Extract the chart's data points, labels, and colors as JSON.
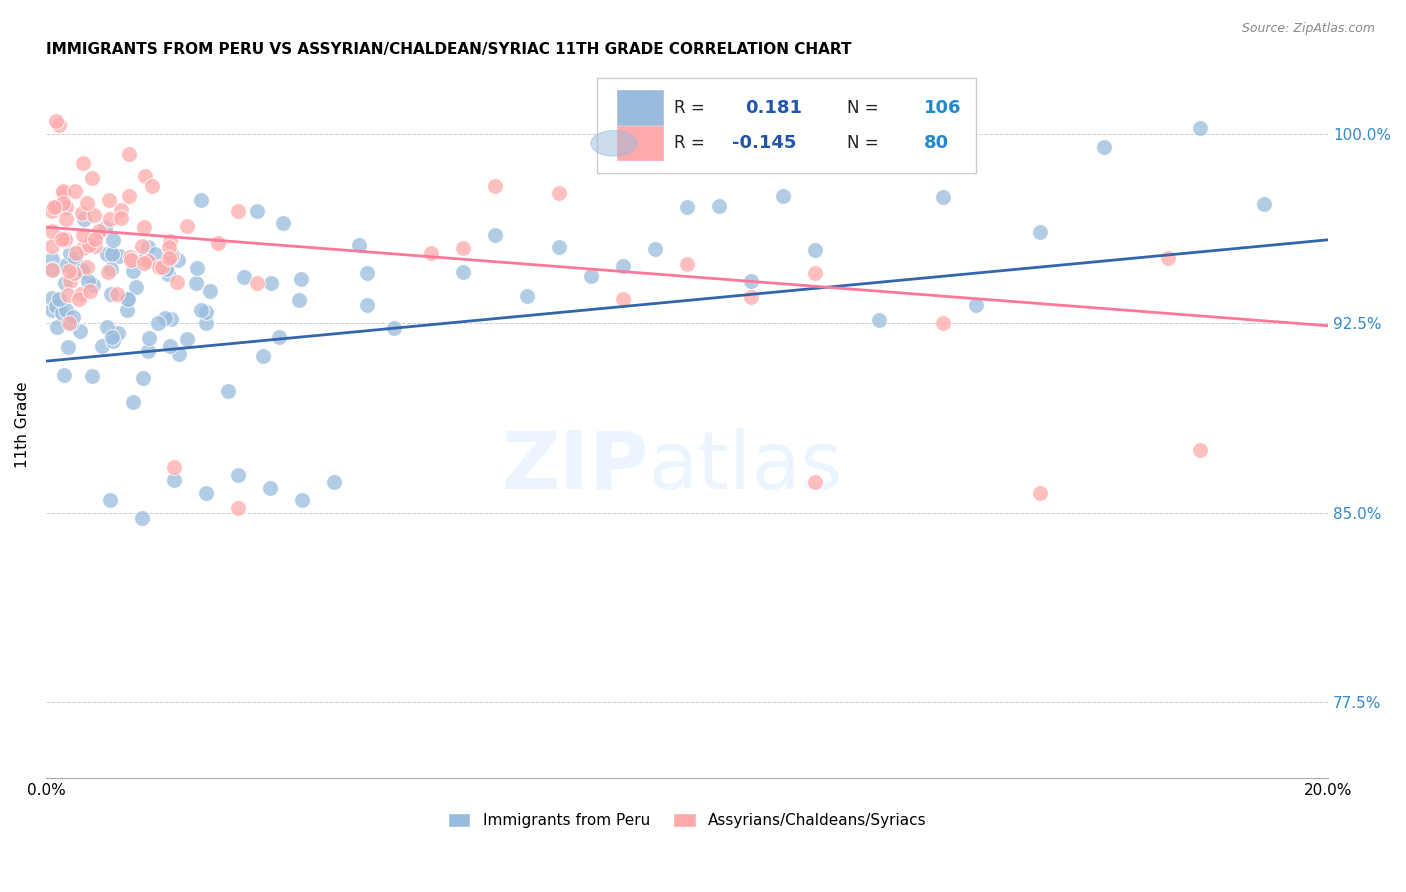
{
  "title": "IMMIGRANTS FROM PERU VS ASSYRIAN/CHALDEAN/SYRIAC 11TH GRADE CORRELATION CHART",
  "source": "Source: ZipAtlas.com",
  "ylabel": "11th Grade",
  "xlim": [
    0.0,
    0.2
  ],
  "ylim": [
    0.745,
    1.025
  ],
  "y_ticks": [
    0.775,
    0.85,
    0.925,
    1.0
  ],
  "y_tick_labels_right": [
    "77.5%",
    "85.0%",
    "92.5%",
    "100.0%"
  ],
  "x_ticks": [
    0.0,
    0.05,
    0.1,
    0.15,
    0.2
  ],
  "x_tick_labels": [
    "0.0%",
    "",
    "",
    "",
    "20.0%"
  ],
  "blue_color": "#99BBDD",
  "pink_color": "#FFAAAA",
  "blue_line_color": "#3366AA",
  "pink_line_color": "#FF7799",
  "right_label_color": "#3388CC",
  "legend_r_color": "#2255AA",
  "legend_n_color": "#2288CC",
  "blue_line_x0": 0.0,
  "blue_line_x1": 0.2,
  "blue_line_y0": 0.91,
  "blue_line_y1": 0.958,
  "pink_line_x0": 0.0,
  "pink_line_x1": 0.2,
  "pink_line_y0": 0.963,
  "pink_line_y1": 0.924,
  "background_color": "#ffffff",
  "grid_color": "#cccccc",
  "watermark_color": "#DDEEFF"
}
